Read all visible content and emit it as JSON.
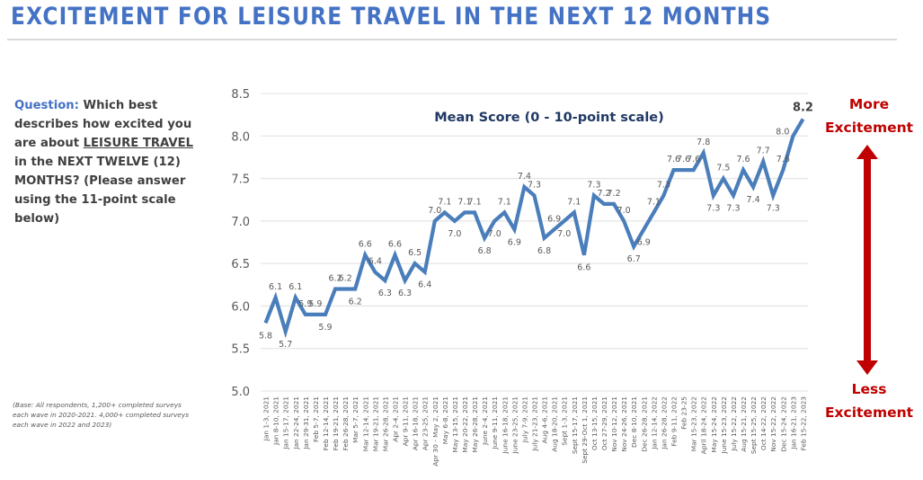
{
  "title": "EXCITEMENT FOR LEISURE TRAVEL IN THE NEXT 12 MONTHS",
  "question": {
    "label": "Question:",
    "text_before": " Which best describes how excited you are about ",
    "emphasis": "LEISURE TRAVEL",
    "text_after": " in the NEXT TWELVE (12) MONTHS? (Please answer using the 11-point scale below)"
  },
  "base_note": "(Base: All respondents, 1,200+ completed surveys each wave in 2020-2021. 4,000+ completed surveys each wave in 2022 and 2023)",
  "scale_arrow": {
    "top_label_line1": "More",
    "top_label_line2": "Excitement",
    "bottom_label_line1": "Less",
    "bottom_label_line2": "Excitement",
    "color": "#c00000"
  },
  "colors": {
    "title": "#4472c4",
    "line": "#4a7ebb",
    "chart_title": "#1f3864",
    "axis_text": "#595959",
    "grid": "#e6e6e6"
  },
  "chart_data": {
    "type": "line",
    "title": "Mean Score (0 - 10-point scale)",
    "xlabel": "",
    "ylabel": "",
    "ylim": [
      5.0,
      8.5
    ],
    "yticks": [
      "5.0",
      "5.5",
      "6.0",
      "6.5",
      "7.0",
      "7.5",
      "8.0",
      "8.5"
    ],
    "grid": true,
    "legend": "none",
    "categories": [
      "Jan 1-3, 2021",
      "Jan 8-10, 2021",
      "Jan 15-17, 2021",
      "Jan 22-24, 2021",
      "Jan 29-31, 2021",
      "Feb 5-7, 2021",
      "Feb 12-14, 2021",
      "Feb 19-21, 2021",
      "Feb 26-28, 2021",
      "Mar 5-7, 2021",
      "Mar 12-14, 2021",
      "Mar 19-21, 2021",
      "Mar 26-28, 2021",
      "Apr 2-4, 2021",
      "Apr 9-11, 2021",
      "Apr 16-18, 2021",
      "Apr 23-25, 2021",
      "Apr 30 - May 2, 2021",
      "May 6-8, 2021",
      "May 13-15, 2021",
      "May 20-22, 2021",
      "May 26-28, 2021",
      "June 2-4, 2021",
      "June 9-11, 2021",
      "June 16-18, 2021",
      "June 23-25, 2021",
      "July 7-9, 2021",
      "July 21-23, 2021",
      "Aug 4-6, 2021",
      "Aug 18-20, 2021",
      "Sept 1-3, 2021",
      "Sept 15-17, 2021",
      "Sept 29-Oct 1, 2021",
      "Oct 13-15, 2021",
      "Oct 27-29, 2021",
      "Nov 10-12, 2021",
      "Nov 24-26, 2021",
      "Dec 8-10, 2021",
      "Dec 26-28, 2021",
      "Jan 12-14, 2022",
      "Jan 26-28, 2022",
      "Feb 9-11, 2022",
      "Feb 23-25",
      "Mar 15-23, 2022",
      "April 18-24, 2022",
      "May 15-24, 2022",
      "June 15-23, 2022",
      "July 15-22, 2022",
      "Aug 15-21, 2022",
      "Sept 15-25, 2022",
      "Oct 14-22, 2022",
      "Nov 15-22, 2022",
      "Dec 15-24, 2022",
      "Jan 16-21, 2023",
      "Feb 15-22, 2023"
    ],
    "series": [
      {
        "name": "Mean Score",
        "values": [
          5.8,
          6.1,
          5.7,
          6.1,
          5.9,
          5.9,
          5.9,
          6.2,
          6.2,
          6.2,
          6.6,
          6.4,
          6.3,
          6.6,
          6.3,
          6.5,
          6.4,
          7.0,
          7.1,
          7.0,
          7.1,
          7.1,
          6.8,
          7.0,
          7.1,
          6.9,
          7.4,
          7.3,
          6.8,
          6.9,
          7.0,
          7.1,
          6.6,
          7.3,
          7.2,
          7.2,
          7.0,
          6.7,
          6.9,
          7.1,
          7.3,
          7.6,
          7.6,
          7.6,
          7.8,
          7.3,
          7.5,
          7.3,
          7.6,
          7.4,
          7.7,
          7.3,
          7.6,
          8.0,
          8.2
        ],
        "label_positions": [
          "below",
          "above",
          "below",
          "above",
          "above",
          "above",
          "below",
          "above",
          "above",
          "below",
          "above",
          "above",
          "below",
          "above",
          "below",
          "above",
          "below",
          "above",
          "above",
          "below",
          "above",
          "above",
          "below",
          "below",
          "above",
          "below",
          "above",
          "above",
          "below",
          "above",
          "below",
          "above",
          "below",
          "above",
          "above",
          "above",
          "above",
          "below",
          "below",
          "above",
          "above",
          "above",
          "above",
          "above",
          "above",
          "below",
          "above",
          "below",
          "above",
          "below",
          "above",
          "below",
          "above",
          "left",
          "above"
        ]
      }
    ],
    "highlight_last_label": true
  }
}
